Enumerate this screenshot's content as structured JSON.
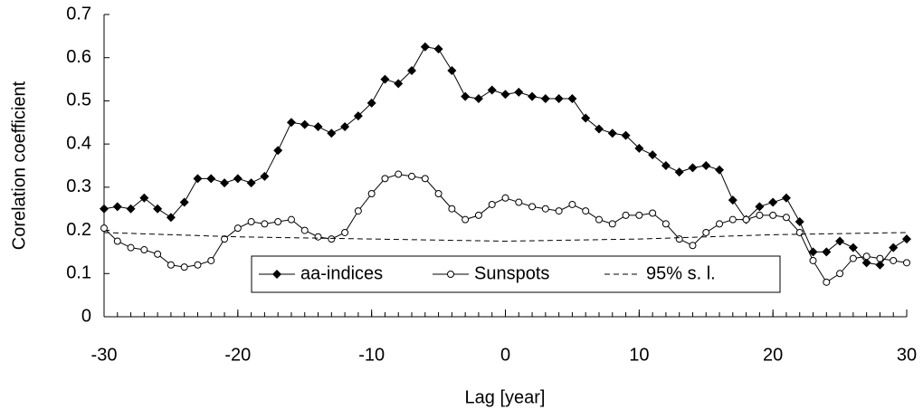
{
  "chart_data": {
    "type": "line",
    "x_label": "Lag [year]",
    "y_label": "Corelation coefficient",
    "x": [
      -30,
      -29,
      -28,
      -27,
      -26,
      -25,
      -24,
      -23,
      -22,
      -21,
      -20,
      -19,
      -18,
      -17,
      -16,
      -15,
      -14,
      -13,
      -12,
      -11,
      -10,
      -9,
      -8,
      -7,
      -6,
      -5,
      -4,
      -3,
      -2,
      -1,
      0,
      1,
      2,
      3,
      4,
      5,
      6,
      7,
      8,
      9,
      10,
      11,
      12,
      13,
      14,
      15,
      16,
      17,
      18,
      19,
      20,
      21,
      22,
      23,
      24,
      25,
      26,
      27,
      28,
      29,
      30
    ],
    "series": [
      {
        "name": "aa-indices",
        "color": "#000000",
        "marker": "diamond",
        "values": [
          0.25,
          0.255,
          0.25,
          0.275,
          0.25,
          0.23,
          0.265,
          0.32,
          0.32,
          0.31,
          0.32,
          0.31,
          0.325,
          0.385,
          0.45,
          0.445,
          0.44,
          0.425,
          0.44,
          0.465,
          0.495,
          0.55,
          0.54,
          0.57,
          0.625,
          0.62,
          0.57,
          0.51,
          0.505,
          0.525,
          0.515,
          0.52,
          0.51,
          0.505,
          0.505,
          0.505,
          0.46,
          0.435,
          0.425,
          0.42,
          0.39,
          0.375,
          0.35,
          0.335,
          0.345,
          0.35,
          0.34,
          0.27,
          0.225,
          0.255,
          0.265,
          0.275,
          0.22,
          0.15,
          0.15,
          0.175,
          0.16,
          0.125,
          0.12,
          0.16,
          0.18
        ]
      },
      {
        "name": "Sunspots",
        "color": "#000000",
        "marker": "circle",
        "values": [
          0.205,
          0.175,
          0.16,
          0.155,
          0.145,
          0.12,
          0.115,
          0.12,
          0.13,
          0.18,
          0.205,
          0.22,
          0.215,
          0.22,
          0.225,
          0.2,
          0.185,
          0.18,
          0.195,
          0.245,
          0.285,
          0.32,
          0.33,
          0.325,
          0.32,
          0.285,
          0.25,
          0.225,
          0.235,
          0.26,
          0.275,
          0.265,
          0.255,
          0.25,
          0.245,
          0.26,
          0.245,
          0.225,
          0.215,
          0.235,
          0.235,
          0.24,
          0.215,
          0.18,
          0.165,
          0.195,
          0.215,
          0.225,
          0.225,
          0.235,
          0.235,
          0.23,
          0.195,
          0.13,
          0.08,
          0.1,
          0.135,
          0.14,
          0.135,
          0.13,
          0.125
        ]
      },
      {
        "name": "95% s. l.",
        "color": "#000000",
        "marker": "none",
        "dashed": true,
        "x": [
          -30,
          -20,
          -10,
          0,
          10,
          20,
          30
        ],
        "values": [
          0.195,
          0.185,
          0.18,
          0.175,
          0.18,
          0.19,
          0.195
        ]
      }
    ],
    "xlim": [
      -30,
      30
    ],
    "xticks": [
      -30,
      -20,
      -10,
      0,
      10,
      20,
      30
    ],
    "ylim": [
      0,
      0.7
    ],
    "yticks": [
      0,
      0.1,
      0.2,
      0.3,
      0.4,
      0.5,
      0.6,
      0.7
    ],
    "grid": false,
    "legend": "bottom"
  }
}
